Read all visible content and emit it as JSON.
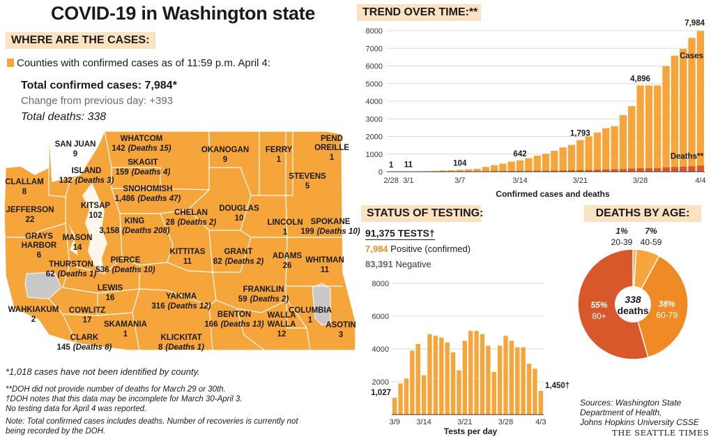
{
  "title": "COVID-19 in Washington state",
  "cases_section": {
    "banner": "WHERE ARE THE CASES:",
    "legend": "Counties with confirmed cases as of 11:59 p.m. April 4:",
    "total_label": "Total confirmed cases: 7,984*",
    "change_label": "Change from previous day: +393",
    "deaths_label": "Total deaths: 338",
    "color": "#f6a53b"
  },
  "counties": [
    {
      "name": "SAN JUAN",
      "value": "9"
    },
    {
      "name": "WHATCOM",
      "value": "142",
      "deaths": "(Deaths 15)"
    },
    {
      "name": "OKANOGAN",
      "value": "9"
    },
    {
      "name": "FERRY",
      "value": "1"
    },
    {
      "name": "PEND OREILLE",
      "name1": "PEND",
      "name2": "OREILLE",
      "value": "1"
    },
    {
      "name": "ISLAND",
      "value": "132",
      "deaths": "(Deaths 3)"
    },
    {
      "name": "SKAGIT",
      "value": "159",
      "deaths": "(Deaths 4)"
    },
    {
      "name": "STEVENS",
      "value": "5"
    },
    {
      "name": "CLALLAM",
      "value": "8"
    },
    {
      "name": "SNOHOMISH",
      "value": "1,486",
      "deaths": "(Deaths 47)"
    },
    {
      "name": "JEFFERSON",
      "value": "22"
    },
    {
      "name": "KITSAP",
      "value": "102"
    },
    {
      "name": "DOUGLAS",
      "value": "10"
    },
    {
      "name": "CHELAN",
      "value": "28",
      "deaths": "(Deaths 2)"
    },
    {
      "name": "KING",
      "value": "3,158",
      "deaths": "(Deaths 208)"
    },
    {
      "name": "LINCOLN",
      "value": "1"
    },
    {
      "name": "SPOKANE",
      "value": "199",
      "deaths": "(Deaths 10)"
    },
    {
      "name": "GRAYS HARBOR",
      "name1": "GRAYS",
      "name2": "HARBOR",
      "value": "6"
    },
    {
      "name": "MASON",
      "value": "14"
    },
    {
      "name": "KITTITAS",
      "value": "11"
    },
    {
      "name": "GRANT",
      "value": "82",
      "deaths": "(Deaths 2)"
    },
    {
      "name": "ADAMS",
      "value": "26"
    },
    {
      "name": "WHITMAN",
      "value": "11"
    },
    {
      "name": "THURSTON",
      "value": "62",
      "deaths": "(Deaths 1)"
    },
    {
      "name": "PIERCE",
      "value": "536",
      "deaths": "(Deaths 10)"
    },
    {
      "name": "LEWIS",
      "value": "16"
    },
    {
      "name": "FRANKLIN",
      "value": "59",
      "deaths": "(Deaths 2)"
    },
    {
      "name": "YAKIMA",
      "value": "316",
      "deaths": "(Deaths 12)"
    },
    {
      "name": "WAHKIAKUM",
      "value": "2"
    },
    {
      "name": "COWLITZ",
      "value": "17"
    },
    {
      "name": "BENTON",
      "value": "166",
      "deaths": "(Deaths 13)"
    },
    {
      "name": "COLUMBIA",
      "value": "1"
    },
    {
      "name": "WALLA WALLA",
      "name1": "WALLA",
      "name2": "WALLA",
      "value": "12"
    },
    {
      "name": "ASOTIN",
      "value": "3"
    },
    {
      "name": "SKAMANIA",
      "value": "1"
    },
    {
      "name": "CLARK",
      "value": "145",
      "deaths": "(Deaths 8)"
    },
    {
      "name": "KLICKITAT",
      "value": "8",
      "deaths": "(Deaths 1)"
    }
  ],
  "notes": {
    "unidentified": "*1,018 cases have not been identified by county.",
    "doh_deaths": "**DOH did not provide number of deaths for March 29 or 30th.",
    "doh_incomplete_1": "†DOH notes that this data may be incomplete for March 30-April 3.",
    "doh_incomplete_2": "No testing data for April 4 was reported.",
    "recoveries_1": "Note: Total confirmed cases includes deaths. Number of recoveries is currently not",
    "recoveries_2": "being recorded by the DOH."
  },
  "trend": {
    "banner": "TREND OVER TIME:**",
    "xlabel": "Confirmed cases and deaths",
    "series_cases_label": "Cases",
    "series_deaths_label": "Deaths**",
    "cases_color": "#f6a53b",
    "deaths_color": "#d9582b"
  },
  "testing": {
    "banner": "STATUS OF TESTING:",
    "total_tests": "91,375 TESTS†",
    "positive_value": "7,984",
    "positive_label": "Positive (confirmed)",
    "negative_value": "83,391",
    "negative_label": "Negative",
    "xlabel": "Tests per day",
    "bar_color": "#f6a53b",
    "positive_color": "#f08a24",
    "negative_color": "#666666"
  },
  "deaths_by_age": {
    "banner": "DEATHS BY AGE:",
    "center_value": "338",
    "center_label": "deaths"
  },
  "sources": {
    "line1": "Sources: Washington State",
    "line2": "Department of Health,",
    "line3": "Johns Hopkins University CSSE",
    "publisher": "THE SEATTLE TIMES"
  },
  "chart_data": [
    {
      "type": "bar",
      "title": "TREND OVER TIME:**",
      "xlabel": "Confirmed cases and deaths",
      "ylim": [
        0,
        8000
      ],
      "yticks": [
        0,
        1000,
        2000,
        3000,
        4000,
        5000,
        6000,
        7000,
        8000
      ],
      "x": [
        "2/28",
        "2/29",
        "3/1",
        "3/2",
        "3/3",
        "3/4",
        "3/5",
        "3/6",
        "3/7",
        "3/8",
        "3/9",
        "3/10",
        "3/11",
        "3/12",
        "3/13",
        "3/14",
        "3/15",
        "3/16",
        "3/17",
        "3/18",
        "3/19",
        "3/20",
        "3/21",
        "3/22",
        "3/23",
        "3/24",
        "3/25",
        "3/26",
        "3/27",
        "3/28",
        "3/29",
        "3/30",
        "3/31",
        "4/1",
        "4/2",
        "4/3",
        "4/4"
      ],
      "xtick_labels": [
        "2/28",
        "3/1",
        "3/7",
        "3/14",
        "3/21",
        "3/28",
        "4/4"
      ],
      "series": [
        {
          "name": "Cases",
          "values": [
            1,
            5,
            11,
            18,
            27,
            39,
            70,
            79,
            104,
            136,
            162,
            267,
            366,
            457,
            568,
            642,
            769,
            904,
            1012,
            1187,
            1376,
            1524,
            1793,
            1996,
            2221,
            2469,
            2580,
            3207,
            3723,
            4896,
            4896,
            4896,
            5984,
            6585,
            6966,
            7591,
            7984
          ]
        },
        {
          "name": "Deaths**",
          "values": [
            0,
            0,
            1,
            5,
            9,
            10,
            11,
            13,
            13,
            18,
            22,
            24,
            29,
            30,
            37,
            40,
            42,
            48,
            52,
            66,
            74,
            83,
            94,
            95,
            110,
            123,
            132,
            147,
            175,
            195,
            195,
            195,
            247,
            262,
            284,
            310,
            338
          ]
        }
      ],
      "data_labels": [
        {
          "x": "2/28",
          "text": "1"
        },
        {
          "x": "3/1",
          "text": "11"
        },
        {
          "x": "3/7",
          "text": "104"
        },
        {
          "x": "3/14",
          "text": "642"
        },
        {
          "x": "3/21",
          "text": "1,793"
        },
        {
          "x": "3/28",
          "text": "4,896"
        },
        {
          "x": "4/4",
          "text": "7,984"
        }
      ]
    },
    {
      "type": "bar",
      "title": "STATUS OF TESTING:",
      "xlabel": "Tests per day",
      "ylim": [
        0,
        8000
      ],
      "yticks": [
        2000,
        4000,
        6000,
        8000
      ],
      "x": [
        "3/9",
        "3/10",
        "3/11",
        "3/12",
        "3/13",
        "3/14",
        "3/15",
        "3/16",
        "3/17",
        "3/18",
        "3/19",
        "3/20",
        "3/21",
        "3/22",
        "3/23",
        "3/24",
        "3/25",
        "3/26",
        "3/27",
        "3/28",
        "3/29",
        "3/30",
        "3/31",
        "4/1",
        "4/2",
        "4/3"
      ],
      "xtick_labels": [
        "3/9",
        "3/14",
        "3/21",
        "3/28",
        "4/3"
      ],
      "values": [
        1027,
        1900,
        2200,
        3900,
        4300,
        2400,
        4900,
        4800,
        4700,
        4400,
        3800,
        2700,
        4500,
        5100,
        5100,
        4900,
        4200,
        2600,
        4200,
        4800,
        4500,
        4100,
        4100,
        3100,
        2800,
        1450
      ],
      "data_labels": [
        {
          "x": "3/9",
          "text": "1,027"
        },
        {
          "x": "4/3",
          "text": "1,450†"
        }
      ]
    },
    {
      "type": "pie",
      "title": "DEATHS BY AGE:",
      "categories": [
        "20-39",
        "40-59",
        "60-79",
        "80+"
      ],
      "values": [
        1,
        7,
        38,
        55
      ],
      "labels": [
        "1%",
        "7%",
        "38%",
        "55%"
      ],
      "colors": [
        "#f6b24a",
        "#f8a53b",
        "#f08a24",
        "#d9582b"
      ]
    }
  ]
}
